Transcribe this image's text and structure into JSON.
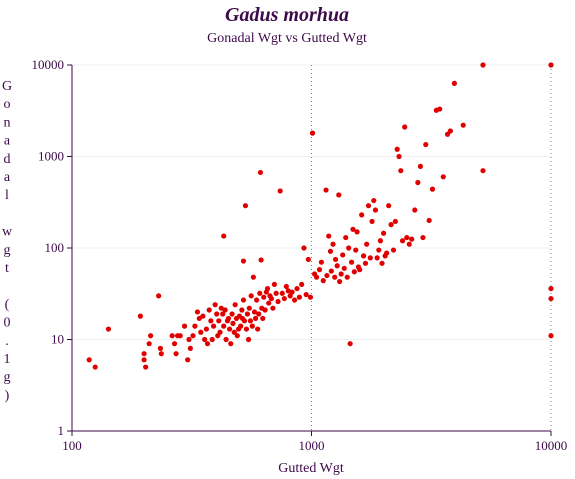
{
  "chart_data": {
    "type": "scatter",
    "title": "Gadus morhua",
    "subtitle": "Gonadal Wgt vs Gutted Wgt",
    "xlabel": "Gutted Wgt",
    "ylabel": "Gonadal wgt (0.1g)",
    "x_scale": "log",
    "y_scale": "log",
    "xlim": [
      100,
      10000
    ],
    "ylim": [
      1,
      10000
    ],
    "x_ticks": [
      "100",
      "1000",
      "10000"
    ],
    "y_ticks": [
      "1",
      "10",
      "100",
      "1000",
      "10000"
    ],
    "grid": "horizontal",
    "reference_lines_x": [
      1000,
      10000
    ],
    "marker_color": "#e00000",
    "points": [
      [
        118,
        6
      ],
      [
        125,
        5
      ],
      [
        142,
        13
      ],
      [
        193,
        18
      ],
      [
        200,
        7
      ],
      [
        200,
        6
      ],
      [
        203,
        5
      ],
      [
        210,
        9
      ],
      [
        213,
        11
      ],
      [
        230,
        30
      ],
      [
        234,
        8
      ],
      [
        236,
        7
      ],
      [
        262,
        11
      ],
      [
        268,
        9
      ],
      [
        272,
        7
      ],
      [
        276,
        11
      ],
      [
        283,
        11
      ],
      [
        295,
        14
      ],
      [
        304,
        6
      ],
      [
        308,
        10
      ],
      [
        312,
        8
      ],
      [
        320,
        11
      ],
      [
        326,
        14
      ],
      [
        334,
        20
      ],
      [
        340,
        17
      ],
      [
        345,
        12
      ],
      [
        352,
        18
      ],
      [
        358,
        10
      ],
      [
        364,
        13
      ],
      [
        368,
        9
      ],
      [
        374,
        21
      ],
      [
        380,
        16
      ],
      [
        385,
        10
      ],
      [
        390,
        14
      ],
      [
        396,
        24
      ],
      [
        402,
        19
      ],
      [
        406,
        11
      ],
      [
        410,
        16
      ],
      [
        415,
        12
      ],
      [
        420,
        22
      ],
      [
        426,
        19
      ],
      [
        430,
        14
      ],
      [
        430,
        135
      ],
      [
        436,
        21
      ],
      [
        440,
        10
      ],
      [
        446,
        16
      ],
      [
        450,
        17
      ],
      [
        455,
        13
      ],
      [
        460,
        9
      ],
      [
        466,
        19
      ],
      [
        470,
        15
      ],
      [
        476,
        12
      ],
      [
        480,
        24
      ],
      [
        486,
        17
      ],
      [
        490,
        11
      ],
      [
        496,
        13
      ],
      [
        500,
        18
      ],
      [
        506,
        14
      ],
      [
        512,
        21
      ],
      [
        515,
        17
      ],
      [
        520,
        27
      ],
      [
        520,
        72
      ],
      [
        525,
        16
      ],
      [
        530,
        290
      ],
      [
        535,
        13
      ],
      [
        540,
        19
      ],
      [
        546,
        10
      ],
      [
        550,
        22
      ],
      [
        556,
        16
      ],
      [
        560,
        30
      ],
      [
        566,
        14
      ],
      [
        572,
        48
      ],
      [
        578,
        20
      ],
      [
        584,
        17
      ],
      [
        590,
        27
      ],
      [
        596,
        13
      ],
      [
        602,
        19
      ],
      [
        608,
        32
      ],
      [
        612,
        670
      ],
      [
        616,
        74
      ],
      [
        620,
        22
      ],
      [
        626,
        17
      ],
      [
        632,
        29
      ],
      [
        640,
        21
      ],
      [
        648,
        33
      ],
      [
        655,
        36
      ],
      [
        663,
        25
      ],
      [
        671,
        30
      ],
      [
        680,
        28
      ],
      [
        690,
        22
      ],
      [
        700,
        40
      ],
      [
        712,
        32
      ],
      [
        725,
        26
      ],
      [
        740,
        420
      ],
      [
        755,
        32
      ],
      [
        770,
        28
      ],
      [
        785,
        38
      ],
      [
        800,
        34
      ],
      [
        815,
        30
      ],
      [
        830,
        33
      ],
      [
        850,
        27
      ],
      [
        870,
        36
      ],
      [
        890,
        29
      ],
      [
        910,
        40
      ],
      [
        930,
        100
      ],
      [
        950,
        31
      ],
      [
        970,
        75
      ],
      [
        990,
        29
      ],
      [
        1010,
        1800
      ],
      [
        1030,
        52
      ],
      [
        1050,
        48
      ],
      [
        1080,
        58
      ],
      [
        1100,
        70
      ],
      [
        1120,
        44
      ],
      [
        1150,
        430
      ],
      [
        1160,
        50
      ],
      [
        1180,
        135
      ],
      [
        1200,
        92
      ],
      [
        1210,
        56
      ],
      [
        1230,
        110
      ],
      [
        1250,
        48
      ],
      [
        1260,
        75
      ],
      [
        1280,
        64
      ],
      [
        1300,
        380
      ],
      [
        1310,
        43
      ],
      [
        1330,
        52
      ],
      [
        1350,
        84
      ],
      [
        1370,
        60
      ],
      [
        1390,
        130
      ],
      [
        1410,
        48
      ],
      [
        1430,
        100
      ],
      [
        1450,
        9
      ],
      [
        1470,
        70
      ],
      [
        1490,
        160
      ],
      [
        1510,
        55
      ],
      [
        1530,
        95
      ],
      [
        1550,
        150
      ],
      [
        1570,
        62
      ],
      [
        1590,
        58
      ],
      [
        1620,
        230
      ],
      [
        1650,
        82
      ],
      [
        1680,
        68
      ],
      [
        1700,
        110
      ],
      [
        1730,
        290
      ],
      [
        1760,
        78
      ],
      [
        1790,
        195
      ],
      [
        1820,
        330
      ],
      [
        1850,
        260
      ],
      [
        1880,
        78
      ],
      [
        1910,
        95
      ],
      [
        1940,
        120
      ],
      [
        1970,
        68
      ],
      [
        2000,
        145
      ],
      [
        2030,
        82
      ],
      [
        2060,
        88
      ],
      [
        2100,
        290
      ],
      [
        2150,
        180
      ],
      [
        2200,
        95
      ],
      [
        2240,
        195
      ],
      [
        2280,
        1200
      ],
      [
        2320,
        1000
      ],
      [
        2360,
        700
      ],
      [
        2400,
        120
      ],
      [
        2450,
        2100
      ],
      [
        2500,
        130
      ],
      [
        2560,
        110
      ],
      [
        2620,
        125
      ],
      [
        2700,
        260
      ],
      [
        2780,
        520
      ],
      [
        2850,
        780
      ],
      [
        2920,
        130
      ],
      [
        3000,
        1350
      ],
      [
        3100,
        200
      ],
      [
        3200,
        440
      ],
      [
        3320,
        3200
      ],
      [
        3430,
        3300
      ],
      [
        3550,
        600
      ],
      [
        3700,
        1750
      ],
      [
        3800,
        1900
      ],
      [
        3950,
        6300
      ],
      [
        4300,
        2200
      ],
      [
        5200,
        700
      ],
      [
        5200,
        10000
      ],
      [
        10000,
        10000
      ],
      [
        10000,
        36
      ],
      [
        10000,
        28
      ],
      [
        10000,
        11
      ]
    ]
  }
}
